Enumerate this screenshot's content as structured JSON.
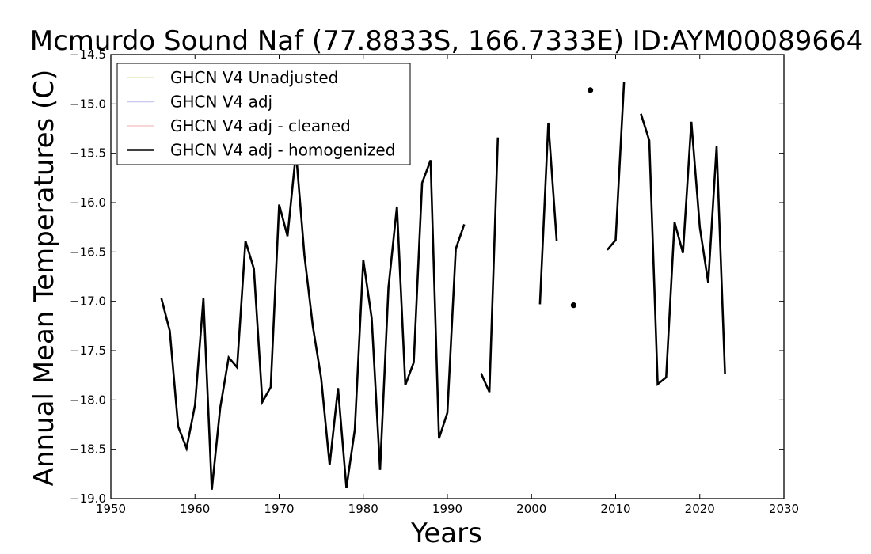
{
  "chart_data": {
    "type": "line",
    "title": "Mcmurdo Sound Naf (77.8833S, 166.7333E) ID:AYM00089664",
    "xlabel": "Years",
    "ylabel": "Annual Mean Temperatures (C)",
    "xlim": [
      1950,
      2030
    ],
    "ylim": [
      -19.0,
      -14.5
    ],
    "x_ticks": [
      1950,
      1960,
      1970,
      1980,
      1990,
      2000,
      2010,
      2020,
      2030
    ],
    "y_ticks": [
      -19.0,
      -18.5,
      -18.0,
      -17.5,
      -17.0,
      -16.5,
      -16.0,
      -15.5,
      -15.0,
      -14.5
    ],
    "y_tick_labels": [
      "−19.0",
      "−18.5",
      "−18.0",
      "−17.5",
      "−17.0",
      "−16.5",
      "−16.0",
      "−15.5",
      "−15.0",
      "−14.5"
    ],
    "grid": false,
    "legend_position": "top-left",
    "series": [
      {
        "name": "GHCN V4 Unadjusted",
        "color": "#c8d88a",
        "visible_line": false,
        "segments": []
      },
      {
        "name": "GHCN V4 adj",
        "color": "#9a9ae8",
        "visible_line": false,
        "segments": []
      },
      {
        "name": "GHCN V4 adj - cleaned",
        "color": "#ee9a9a",
        "visible_line": false,
        "segments": []
      },
      {
        "name": "GHCN V4 adj - homogenized",
        "color": "#000000",
        "visible_line": true,
        "segments": [
          [
            [
              1956,
              -16.97
            ],
            [
              1957,
              -17.3
            ],
            [
              1958,
              -18.27
            ],
            [
              1959,
              -18.49
            ],
            [
              1960,
              -18.05
            ],
            [
              1961,
              -16.97
            ],
            [
              1962,
              -18.91
            ],
            [
              1963,
              -18.08
            ],
            [
              1964,
              -17.57
            ],
            [
              1965,
              -17.67
            ],
            [
              1966,
              -16.39
            ],
            [
              1967,
              -16.67
            ],
            [
              1968,
              -18.02
            ],
            [
              1969,
              -17.87
            ],
            [
              1970,
              -16.02
            ],
            [
              1971,
              -16.34
            ],
            [
              1972,
              -15.49
            ],
            [
              1973,
              -16.53
            ],
            [
              1974,
              -17.25
            ],
            [
              1975,
              -17.78
            ],
            [
              1976,
              -18.66
            ],
            [
              1977,
              -17.88
            ],
            [
              1978,
              -18.89
            ],
            [
              1979,
              -18.3
            ],
            [
              1980,
              -16.58
            ],
            [
              1981,
              -17.17
            ],
            [
              1982,
              -18.71
            ],
            [
              1983,
              -16.86
            ],
            [
              1984,
              -16.04
            ],
            [
              1985,
              -17.85
            ],
            [
              1986,
              -17.62
            ],
            [
              1987,
              -15.8
            ],
            [
              1988,
              -15.57
            ],
            [
              1989,
              -18.39
            ],
            [
              1990,
              -18.13
            ],
            [
              1991,
              -16.47
            ],
            [
              1992,
              -16.22
            ]
          ],
          [
            [
              1994,
              -17.73
            ],
            [
              1995,
              -17.92
            ],
            [
              1996,
              -15.34
            ]
          ],
          [
            [
              2001,
              -17.03
            ],
            [
              2002,
              -15.19
            ],
            [
              2003,
              -16.39
            ]
          ],
          [
            [
              2005,
              -17.04
            ]
          ],
          [
            [
              2007,
              -14.86
            ]
          ],
          [
            [
              2009,
              -16.48
            ],
            [
              2010,
              -16.38
            ],
            [
              2011,
              -14.78
            ]
          ],
          [
            [
              2013,
              -15.1
            ],
            [
              2014,
              -15.37
            ],
            [
              2015,
              -17.84
            ],
            [
              2016,
              -17.77
            ],
            [
              2017,
              -16.2
            ],
            [
              2018,
              -16.51
            ],
            [
              2019,
              -15.18
            ],
            [
              2020,
              -16.25
            ],
            [
              2021,
              -16.81
            ],
            [
              2022,
              -15.43
            ],
            [
              2023,
              -17.74
            ]
          ]
        ]
      }
    ]
  }
}
